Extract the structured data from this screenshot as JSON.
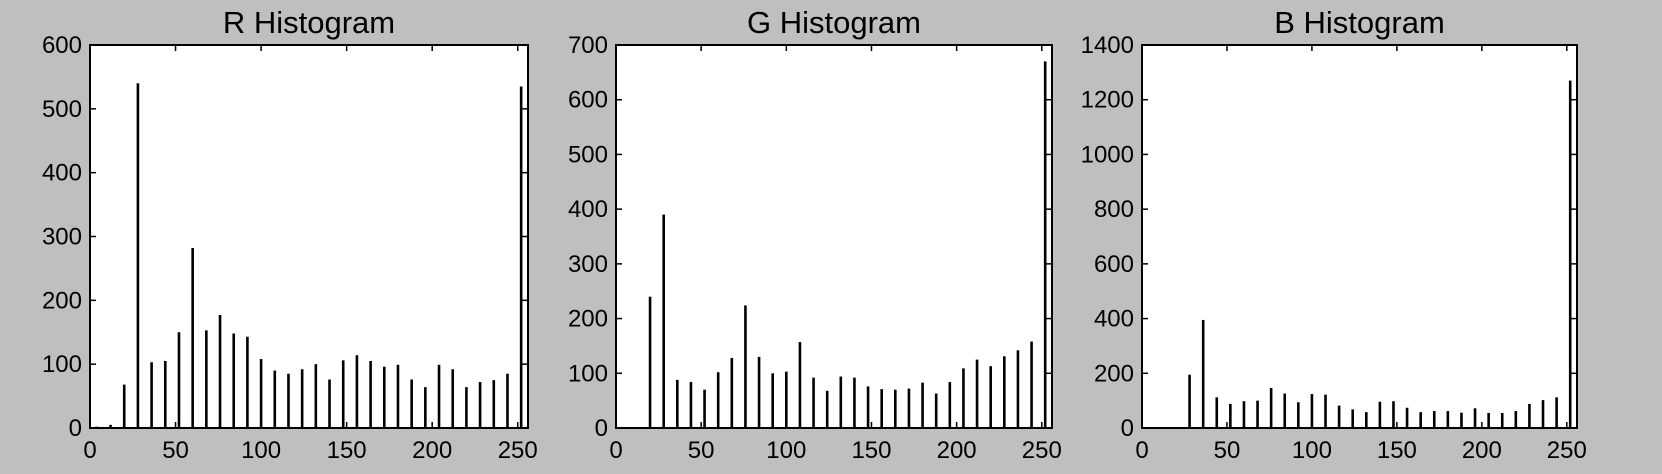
{
  "chart_data": [
    {
      "type": "bar",
      "title": "R Histogram",
      "xlabel": "",
      "ylabel": "",
      "xlim": [
        0,
        256
      ],
      "ylim": [
        0,
        600
      ],
      "xticks": [
        0,
        50,
        100,
        150,
        200,
        250
      ],
      "yticks": [
        0,
        100,
        200,
        300,
        400,
        500,
        600
      ],
      "x": [
        4,
        12,
        20,
        28,
        36,
        44,
        52,
        60,
        68,
        76,
        84,
        92,
        100,
        108,
        116,
        124,
        132,
        140,
        148,
        156,
        164,
        172,
        180,
        188,
        196,
        204,
        212,
        220,
        228,
        236,
        244,
        252
      ],
      "values": [
        2,
        5,
        68,
        540,
        103,
        105,
        150,
        282,
        153,
        177,
        148,
        143,
        108,
        90,
        85,
        92,
        100,
        76,
        106,
        114,
        105,
        96,
        99,
        76,
        64,
        99,
        92,
        64,
        72,
        75,
        85,
        535
      ],
      "grid": false,
      "color": "#000000"
    },
    {
      "type": "bar",
      "title": "G Histogram",
      "xlabel": "",
      "ylabel": "",
      "xlim": [
        0,
        256
      ],
      "ylim": [
        0,
        700
      ],
      "xticks": [
        0,
        50,
        100,
        150,
        200,
        250
      ],
      "yticks": [
        0,
        100,
        200,
        300,
        400,
        500,
        600,
        700
      ],
      "x": [
        4,
        12,
        20,
        28,
        36,
        44,
        52,
        60,
        68,
        76,
        84,
        92,
        100,
        108,
        116,
        124,
        132,
        140,
        148,
        156,
        164,
        172,
        180,
        188,
        196,
        204,
        212,
        220,
        228,
        236,
        244,
        252
      ],
      "values": [
        0,
        0,
        240,
        390,
        88,
        84,
        70,
        102,
        128,
        224,
        130,
        100,
        103,
        157,
        92,
        68,
        94,
        92,
        76,
        71,
        70,
        72,
        83,
        63,
        84,
        109,
        125,
        113,
        131,
        142,
        158,
        670
      ],
      "grid": false,
      "color": "#000000"
    },
    {
      "type": "bar",
      "title": "B Histogram",
      "xlabel": "",
      "ylabel": "",
      "xlim": [
        0,
        256
      ],
      "ylim": [
        0,
        1400
      ],
      "xticks": [
        0,
        50,
        100,
        150,
        200,
        250
      ],
      "yticks": [
        0,
        200,
        400,
        600,
        800,
        1000,
        1200,
        1400
      ],
      "x": [
        4,
        12,
        20,
        28,
        36,
        44,
        52,
        60,
        68,
        76,
        84,
        92,
        100,
        108,
        116,
        124,
        132,
        140,
        148,
        156,
        164,
        172,
        180,
        188,
        196,
        204,
        212,
        220,
        228,
        236,
        244,
        252
      ],
      "values": [
        0,
        0,
        0,
        195,
        395,
        112,
        88,
        98,
        100,
        146,
        126,
        94,
        124,
        122,
        82,
        68,
        58,
        96,
        98,
        74,
        58,
        62,
        62,
        56,
        72,
        55,
        55,
        62,
        88,
        102,
        112,
        1270
      ],
      "grid": false,
      "color": "#000000"
    }
  ]
}
